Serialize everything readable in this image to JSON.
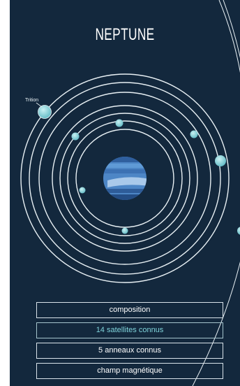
{
  "planet": {
    "title": "NEPTUNE",
    "moon_label": "Trition"
  },
  "menu": [
    {
      "label": "composition",
      "active": false
    },
    {
      "label": "14 satellites connus",
      "active": true
    },
    {
      "label": "5 anneaux connus",
      "active": false
    },
    {
      "label": "champ magnétique",
      "active": false
    }
  ],
  "colors": {
    "background": "#13283d",
    "orbit": "#e8f0f4",
    "moon": "#7fd3da",
    "planet": "#4d86c6",
    "active_text": "#7fd3da"
  }
}
